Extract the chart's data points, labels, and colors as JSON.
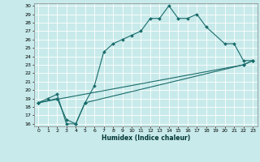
{
  "xlabel": "Humidex (Indice chaleur)",
  "bg_color": "#c8eaea",
  "grid_color": "#ffffff",
  "line_color": "#1a6b6b",
  "xlim": [
    -0.5,
    23.5
  ],
  "ylim": [
    15.7,
    30.3
  ],
  "xticks": [
    0,
    1,
    2,
    3,
    4,
    5,
    6,
    7,
    8,
    9,
    10,
    11,
    12,
    13,
    14,
    15,
    16,
    17,
    18,
    19,
    20,
    21,
    22,
    23
  ],
  "yticks": [
    16,
    17,
    18,
    19,
    20,
    21,
    22,
    23,
    24,
    25,
    26,
    27,
    28,
    29,
    30
  ],
  "line1_x": [
    0,
    1,
    2,
    3,
    4,
    5,
    6,
    7,
    8,
    9,
    10,
    11,
    12,
    13,
    14,
    15,
    16,
    17,
    18,
    20,
    21,
    22,
    23
  ],
  "line1_y": [
    18.5,
    19.0,
    19.5,
    16.0,
    16.0,
    18.5,
    20.5,
    24.5,
    25.5,
    26.0,
    26.5,
    27.0,
    28.5,
    28.5,
    30.0,
    28.5,
    28.5,
    29.0,
    27.5,
    25.5,
    25.5,
    23.5,
    23.5
  ],
  "line2_x": [
    0,
    2,
    3,
    4,
    5,
    22,
    23
  ],
  "line2_y": [
    18.5,
    19.0,
    16.5,
    16.0,
    18.5,
    23.0,
    23.5
  ],
  "line3_x": [
    0,
    22,
    23
  ],
  "line3_y": [
    18.5,
    23.0,
    23.5
  ]
}
